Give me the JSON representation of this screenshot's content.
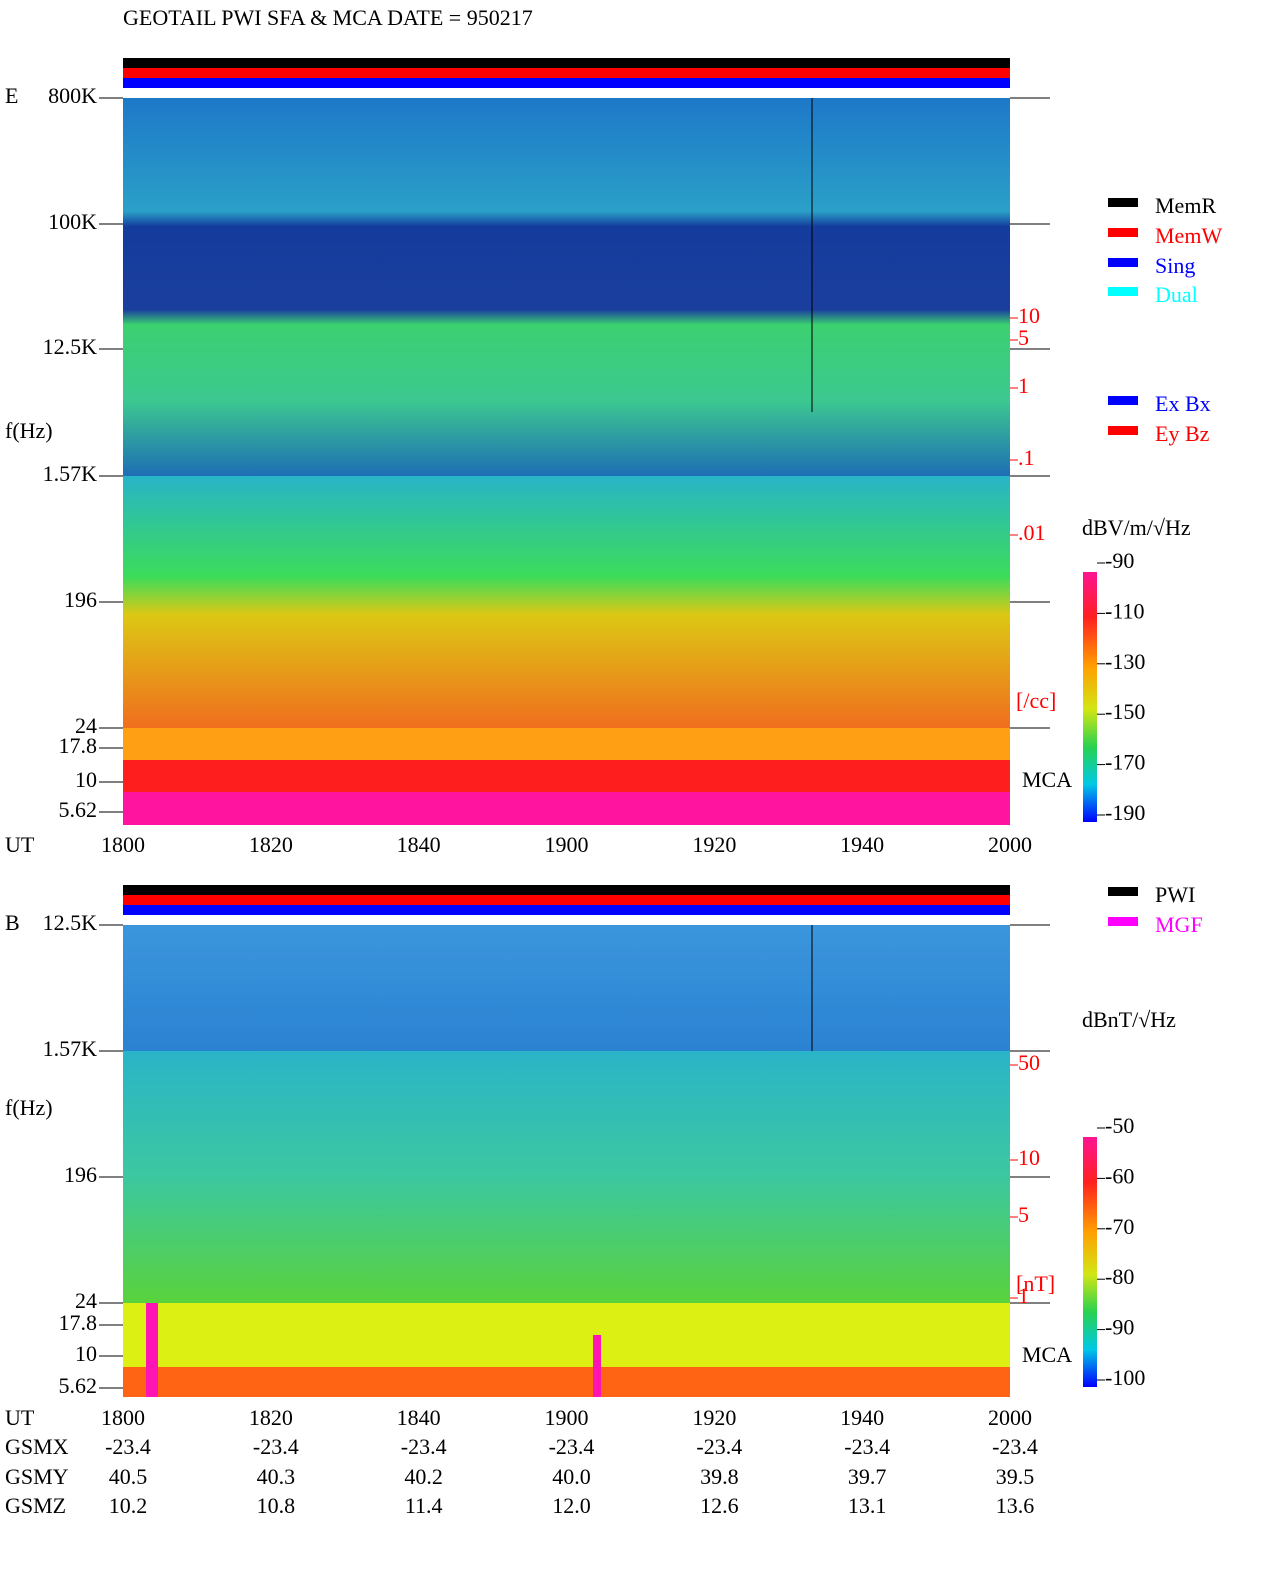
{
  "title": "GEOTAIL  PWI SFA & MCA   DATE = 950217",
  "panels": [
    {
      "label": "E",
      "y_label": "f(Hz)",
      "x_label": "UT",
      "y_ticks": [
        "800K",
        "100K",
        "12.5K",
        "1.57K",
        "196",
        "24",
        "17.8",
        "10",
        "5.62"
      ],
      "x_ticks": [
        1800,
        1820,
        1840,
        1900,
        1920,
        1940,
        2000
      ],
      "right_ticks": [
        "10",
        "5",
        "1",
        ".1",
        ".01"
      ],
      "right_unit": "[/cc]",
      "mca": "MCA",
      "legend": [
        {
          "name": "MemR",
          "color": "#000000"
        },
        {
          "name": "MemW",
          "color": "#ff0000"
        },
        {
          "name": "Sing",
          "color": "#0000ff"
        },
        {
          "name": "Dual",
          "color": "#00ffff"
        },
        {
          "name": "Ex Bx",
          "color": "#0000ff"
        },
        {
          "name": "Ey Bz",
          "color": "#ff0000"
        }
      ],
      "colorbar": {
        "unit": "dBV/m/√Hz",
        "ticks": [
          -90,
          -110,
          -130,
          -150,
          -170,
          -190
        ]
      }
    },
    {
      "label": "B",
      "y_label": "f(Hz)",
      "x_label": "UT",
      "y_ticks": [
        "12.5K",
        "1.57K",
        "196",
        "24",
        "17.8",
        "10",
        "5.62"
      ],
      "x_ticks": [
        1800,
        1820,
        1840,
        1900,
        1920,
        1940,
        2000
      ],
      "right_ticks": [
        "50",
        "10",
        "5",
        "1"
      ],
      "right_unit": "[nT]",
      "mca": "MCA",
      "legend": [
        {
          "name": "PWI",
          "color": "#000000"
        },
        {
          "name": "MGF",
          "color": "#ff00ff"
        }
      ],
      "colorbar": {
        "unit": "dBnT/√Hz",
        "ticks": [
          -50,
          -60,
          -70,
          -80,
          -90,
          -100
        ]
      }
    }
  ],
  "ephemeris": {
    "rows": [
      {
        "name": "GSMX",
        "values": [
          "-23.4",
          "-23.4",
          "-23.4",
          "-23.4",
          "-23.4",
          "-23.4",
          "-23.4"
        ]
      },
      {
        "name": "GSMY",
        "values": [
          "40.5",
          "40.3",
          "40.2",
          "40.0",
          "39.8",
          "39.7",
          "39.5"
        ]
      },
      {
        "name": "GSMZ",
        "values": [
          "10.2",
          "10.8",
          "11.4",
          "12.0",
          "12.6",
          "13.1",
          "13.6"
        ]
      }
    ]
  }
}
